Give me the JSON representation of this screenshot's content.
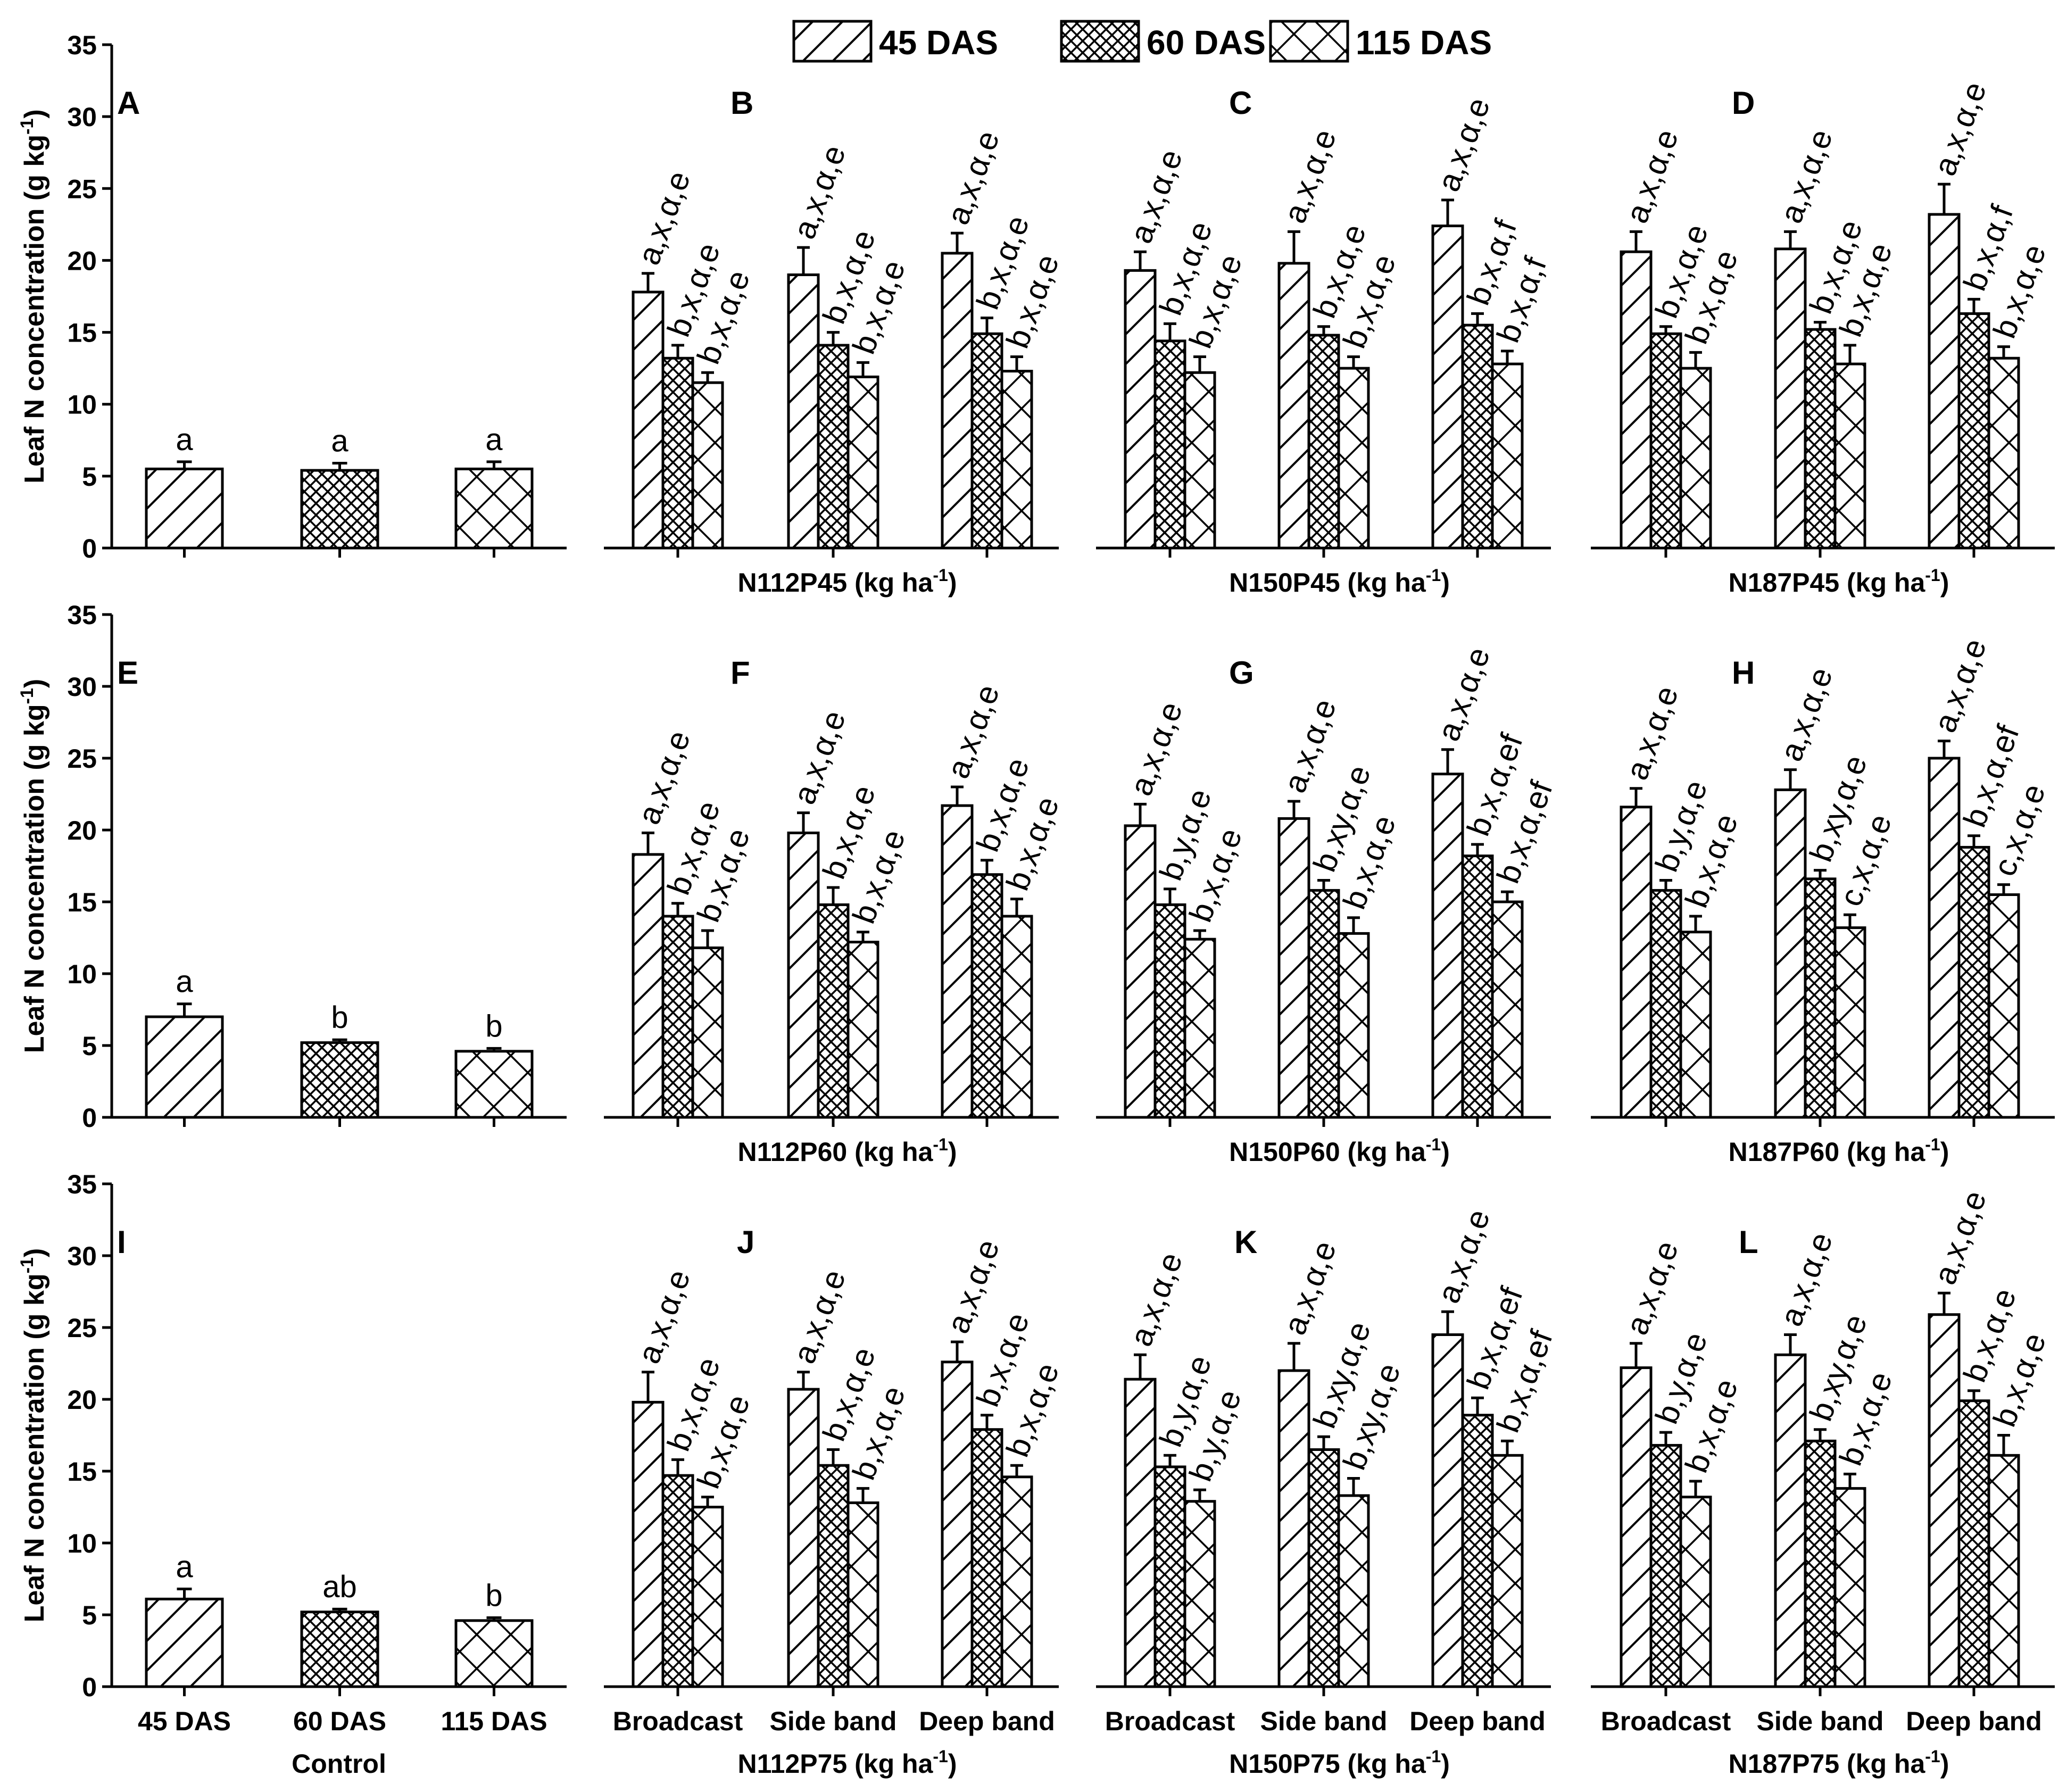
{
  "legend": {
    "items": [
      {
        "label": "45 DAS",
        "pattern": "diag"
      },
      {
        "label": "60 DAS",
        "pattern": "cross"
      },
      {
        "label": "115 DAS",
        "pattern": "xcross"
      }
    ]
  },
  "y_axis": {
    "label": "Leaf N concentration (g kg",
    "label_sup": "-1",
    "label_close": ")",
    "ticks": [
      "0",
      "5",
      "10",
      "15",
      "20",
      "25",
      "30",
      "35"
    ],
    "ylim": [
      0,
      35
    ]
  },
  "control": {
    "categories": [
      "45 DAS",
      "60 DAS",
      "115 DAS"
    ],
    "xlabel": "Control"
  },
  "treatment_categories": [
    "Broadcast",
    "Side band",
    "Deep band"
  ],
  "chart_data": {
    "type": "bar",
    "ylabel": "Leaf N concentration (g kg-1)",
    "ylim": [
      0,
      35
    ],
    "series_names": [
      "45 DAS",
      "60 DAS",
      "115 DAS"
    ],
    "rows": [
      {
        "panels": [
          {
            "panel": "A",
            "control": true,
            "values": [
              5.5,
              5.4,
              5.5
            ],
            "errors": [
              0.5,
              0.5,
              0.5
            ],
            "labels": [
              "a",
              "a",
              "a"
            ]
          },
          {
            "panel": "B",
            "xlabel": "N112P45 (kg ha",
            "xlabel_sup": "-1",
            "xlabel_close": ")",
            "groups": [
              {
                "values": [
                  17.8,
                  13.2,
                  11.5
                ],
                "errors": [
                  1.3,
                  0.9,
                  0.7
                ],
                "labels": [
                  "a,x,α,e",
                  "b,x,α,e",
                  "b,x,α,e"
                ]
              },
              {
                "values": [
                  19.0,
                  14.1,
                  11.9
                ],
                "errors": [
                  1.9,
                  0.9,
                  1.0
                ],
                "labels": [
                  "a,x,α,e",
                  "b,x,α,e",
                  "b,x,α,e"
                ]
              },
              {
                "values": [
                  20.5,
                  14.9,
                  12.3
                ],
                "errors": [
                  1.4,
                  1.1,
                  1.0
                ],
                "labels": [
                  "a,x,α,e",
                  "b,x,α,e",
                  "b,x,α,e"
                ]
              }
            ]
          },
          {
            "panel": "C",
            "xlabel": "N150P45 (kg ha",
            "xlabel_sup": "-1",
            "xlabel_close": ")",
            "groups": [
              {
                "values": [
                  19.3,
                  14.4,
                  12.2
                ],
                "errors": [
                  1.3,
                  1.2,
                  1.1
                ],
                "labels": [
                  "a,x,α,e",
                  "b,x,α,e",
                  "b,x,α,e"
                ]
              },
              {
                "values": [
                  19.8,
                  14.8,
                  12.5
                ],
                "errors": [
                  2.2,
                  0.6,
                  0.8
                ],
                "labels": [
                  "a,x,α,e",
                  "b,x,α,e",
                  "b,x,α,e"
                ]
              },
              {
                "values": [
                  22.4,
                  15.5,
                  12.8
                ],
                "errors": [
                  1.8,
                  0.8,
                  0.9
                ],
                "labels": [
                  "a,x,α,e",
                  "b,x,α,f",
                  "b,x,α,f"
                ]
              }
            ]
          },
          {
            "panel": "D",
            "xlabel": "N187P45 (kg ha",
            "xlabel_sup": "-1",
            "xlabel_close": ")",
            "groups": [
              {
                "values": [
                  20.6,
                  14.9,
                  12.5
                ],
                "errors": [
                  1.4,
                  0.5,
                  1.1
                ],
                "labels": [
                  "a,x,α,e",
                  "b,x,α,e",
                  "b,x,α,e"
                ]
              },
              {
                "values": [
                  20.8,
                  15.2,
                  12.8
                ],
                "errors": [
                  1.2,
                  0.5,
                  1.3
                ],
                "labels": [
                  "a,x,α,e",
                  "b,x,α,e",
                  "b,x,α,e"
                ]
              },
              {
                "values": [
                  23.2,
                  16.3,
                  13.2
                ],
                "errors": [
                  2.1,
                  1.0,
                  0.8
                ],
                "labels": [
                  "a,x,α,e",
                  "b,x,α,f",
                  "b,x,α,e"
                ]
              }
            ]
          }
        ]
      },
      {
        "panels": [
          {
            "panel": "E",
            "control": true,
            "values": [
              7.0,
              5.2,
              4.6
            ],
            "errors": [
              0.9,
              0.2,
              0.2
            ],
            "labels": [
              "a",
              "b",
              "b"
            ]
          },
          {
            "panel": "F",
            "xlabel": "N112P60 (kg ha",
            "xlabel_sup": "-1",
            "xlabel_close": ")",
            "groups": [
              {
                "values": [
                  18.3,
                  14.0,
                  11.8
                ],
                "errors": [
                  1.5,
                  0.9,
                  1.2
                ],
                "labels": [
                  "a,x,α,e",
                  "b,x,α,e",
                  "b,x,α,e"
                ]
              },
              {
                "values": [
                  19.8,
                  14.8,
                  12.2
                ],
                "errors": [
                  1.4,
                  1.2,
                  0.7
                ],
                "labels": [
                  "a,x,α,e",
                  "b,x,α,e",
                  "b,x,α,e"
                ]
              },
              {
                "values": [
                  21.7,
                  16.9,
                  14.0
                ],
                "errors": [
                  1.3,
                  1.0,
                  1.2
                ],
                "labels": [
                  "a,x,α,e",
                  "b,x,α,e",
                  "b,x,α,e"
                ]
              }
            ]
          },
          {
            "panel": "G",
            "xlabel": "N150P60 (kg ha",
            "xlabel_sup": "-1",
            "xlabel_close": ")",
            "groups": [
              {
                "values": [
                  20.3,
                  14.8,
                  12.4
                ],
                "errors": [
                  1.5,
                  1.1,
                  0.6
                ],
                "labels": [
                  "a,x,α,e",
                  "b,y,α,e",
                  "b,x,α,e"
                ]
              },
              {
                "values": [
                  20.8,
                  15.8,
                  12.8
                ],
                "errors": [
                  1.2,
                  0.7,
                  1.1
                ],
                "labels": [
                  "a,x,α,e",
                  "b,xy,α,e",
                  "b,x,α,e"
                ]
              },
              {
                "values": [
                  23.9,
                  18.2,
                  15.0
                ],
                "errors": [
                  1.7,
                  0.8,
                  0.7
                ],
                "labels": [
                  "a,x,α,e",
                  "b,x,α,ef",
                  "b,x,α,ef"
                ]
              }
            ]
          },
          {
            "panel": "H",
            "xlabel": "N187P60 (kg ha",
            "xlabel_sup": "-1",
            "xlabel_close": ")",
            "groups": [
              {
                "values": [
                  21.6,
                  15.8,
                  12.9
                ],
                "errors": [
                  1.3,
                  0.7,
                  1.1
                ],
                "labels": [
                  "a,x,α,e",
                  "b,y,α,e",
                  "b,x,α,e"
                ]
              },
              {
                "values": [
                  22.8,
                  16.6,
                  13.2
                ],
                "errors": [
                  1.4,
                  0.6,
                  0.9
                ],
                "labels": [
                  "a,x,α,e",
                  "b,xy,α,e",
                  "c,x,α,e"
                ]
              },
              {
                "values": [
                  25.0,
                  18.8,
                  15.5
                ],
                "errors": [
                  1.2,
                  0.8,
                  0.7
                ],
                "labels": [
                  "a,x,α,e",
                  "b,x,α,ef",
                  "c,x,α,e"
                ]
              }
            ]
          }
        ]
      },
      {
        "panels": [
          {
            "panel": "I",
            "control": true,
            "values": [
              6.1,
              5.2,
              4.6
            ],
            "errors": [
              0.7,
              0.2,
              0.2
            ],
            "labels": [
              "a",
              "ab",
              "b"
            ]
          },
          {
            "panel": "J",
            "xlabel": "N112P75 (kg ha",
            "xlabel_sup": "-1",
            "xlabel_close": ")",
            "groups": [
              {
                "values": [
                  19.8,
                  14.7,
                  12.5
                ],
                "errors": [
                  2.1,
                  1.1,
                  0.7
                ],
                "labels": [
                  "a,x,α,e",
                  "b,x,α,e",
                  "b,x,α,e"
                ]
              },
              {
                "values": [
                  20.7,
                  15.4,
                  12.8
                ],
                "errors": [
                  1.2,
                  1.1,
                  1.0
                ],
                "labels": [
                  "a,x,α,e",
                  "b,x,α,e",
                  "b,x,α,e"
                ]
              },
              {
                "values": [
                  22.6,
                  17.9,
                  14.6
                ],
                "errors": [
                  1.4,
                  1.0,
                  0.8
                ],
                "labels": [
                  "a,x,α,e",
                  "b,x,α,e",
                  "b,x,α,e"
                ]
              }
            ]
          },
          {
            "panel": "K",
            "xlabel": "N150P75 (kg ha",
            "xlabel_sup": "-1",
            "xlabel_close": ")",
            "groups": [
              {
                "values": [
                  21.4,
                  15.3,
                  12.9
                ],
                "errors": [
                  1.7,
                  0.8,
                  0.8
                ],
                "labels": [
                  "a,x,α,e",
                  "b,y,α,e",
                  "b,y,α,e"
                ]
              },
              {
                "values": [
                  22.0,
                  16.5,
                  13.3
                ],
                "errors": [
                  1.9,
                  0.9,
                  1.2
                ],
                "labels": [
                  "a,x,α,e",
                  "b,xy,α,e",
                  "b,xy,α,e"
                ]
              },
              {
                "values": [
                  24.5,
                  18.9,
                  16.1
                ],
                "errors": [
                  1.6,
                  1.2,
                  1.0
                ],
                "labels": [
                  "a,x,α,e",
                  "b,x,α,ef",
                  "b,x,α,ef"
                ]
              }
            ]
          },
          {
            "panel": "L",
            "xlabel": "N187P75 (kg ha",
            "xlabel_sup": "-1",
            "xlabel_close": ")",
            "groups": [
              {
                "values": [
                  22.2,
                  16.8,
                  13.2
                ],
                "errors": [
                  1.7,
                  0.9,
                  1.1
                ],
                "labels": [
                  "a,x,α,e",
                  "b,y,α,e",
                  "b,x,α,e"
                ]
              },
              {
                "values": [
                  23.1,
                  17.1,
                  13.8
                ],
                "errors": [
                  1.4,
                  0.8,
                  1.0
                ],
                "labels": [
                  "a,x,α,e",
                  "b,xy,α,e",
                  "b,x,α,e"
                ]
              },
              {
                "values": [
                  25.9,
                  19.9,
                  16.1
                ],
                "errors": [
                  1.5,
                  0.7,
                  1.4
                ],
                "labels": [
                  "a,x,α,e",
                  "b,x,α,e",
                  "b,x,α,e"
                ]
              }
            ]
          }
        ]
      }
    ]
  }
}
